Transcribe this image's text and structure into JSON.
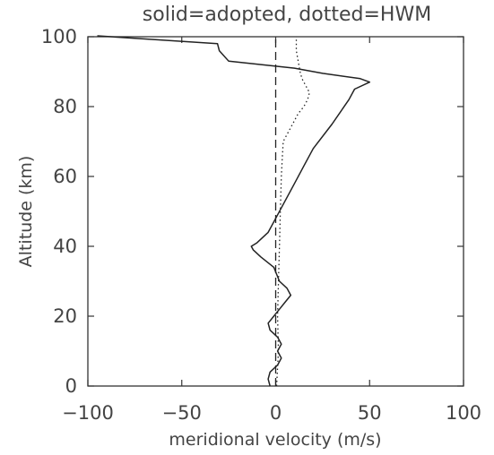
{
  "chart_data": {
    "type": "line",
    "title": "solid=adopted, dotted=HWM",
    "xlabel": "meridional velocity (m/s)",
    "ylabel": "Altitude (km)",
    "xlim": [
      -100,
      100
    ],
    "ylim": [
      0,
      100
    ],
    "xticks": [
      -100,
      -50,
      0,
      50,
      100
    ],
    "yticks": [
      0,
      20,
      40,
      60,
      80,
      100
    ],
    "grid": false,
    "series": [
      {
        "style": "solid",
        "x": [
          -3,
          -4,
          -3,
          1,
          3,
          1,
          3,
          1,
          -3,
          -4,
          -1,
          2,
          5,
          8,
          6,
          2,
          -1,
          -8,
          -12,
          -13,
          -10,
          -4,
          0,
          5,
          10,
          15,
          20,
          30,
          39,
          42,
          50,
          45,
          25,
          10,
          -25,
          -30,
          -31,
          -95
        ],
        "y": [
          0,
          2,
          4,
          6,
          8,
          10,
          12,
          14,
          16,
          18,
          20,
          22,
          24,
          26,
          28,
          30,
          34,
          37,
          39,
          40,
          41,
          44,
          48,
          53,
          58,
          63,
          68,
          75,
          82,
          85,
          87,
          88,
          89.5,
          91,
          93,
          96,
          98,
          101
        ]
      },
      {
        "style": "dotted",
        "x": [
          0.5,
          1.5,
          1,
          1.5,
          2,
          2.5,
          3,
          3.5,
          4,
          6,
          8,
          10,
          12,
          15,
          17,
          18,
          16,
          14,
          13,
          12,
          11,
          11
        ],
        "y": [
          0,
          10,
          20,
          30,
          40,
          50,
          60,
          65,
          70,
          72,
          74,
          76,
          78,
          80,
          82,
          84,
          86,
          88,
          90,
          93,
          96,
          100
        ]
      },
      {
        "style": "dashed",
        "x": [
          0,
          0
        ],
        "y": [
          0,
          100
        ]
      }
    ]
  }
}
